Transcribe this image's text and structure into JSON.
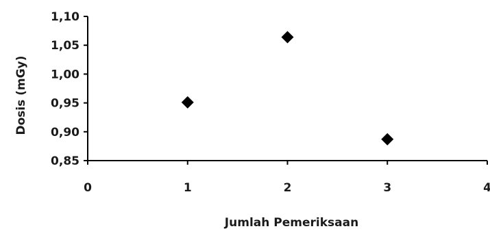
{
  "chart_data": {
    "type": "scatter",
    "title": "",
    "xlabel": "Jumlah Pemeriksaan",
    "ylabel": "Dosis (mGy)",
    "xlim": [
      0,
      4
    ],
    "ylim": [
      0.85,
      1.1
    ],
    "x_ticks": [
      "0",
      "1",
      "2",
      "3",
      "4"
    ],
    "y_ticks": [
      "0,85",
      "0,90",
      "0,95",
      "1,00",
      "1,05",
      "1,10"
    ],
    "grid": false,
    "legend": "none",
    "marker": "diamond",
    "marker_color": "#000000",
    "points": [
      {
        "x": 1,
        "y": 0.951
      },
      {
        "x": 2,
        "y": 1.064
      },
      {
        "x": 3,
        "y": 0.887
      }
    ]
  }
}
